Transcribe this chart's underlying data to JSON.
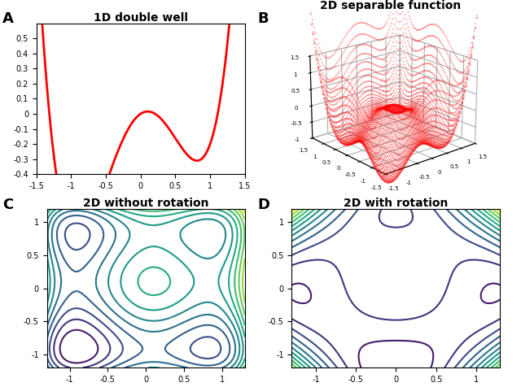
{
  "title_A": "1D double well",
  "title_B": "2D separable function",
  "title_C": "2D without rotation",
  "title_D": "2D with rotation",
  "label_A": "A",
  "label_B": "B",
  "label_C": "C",
  "label_D": "D",
  "line_color": "#FF0000",
  "surface_color": "#FF0000",
  "xlim_A": [
    -1.5,
    1.5
  ],
  "ylim_A": [
    -0.4,
    0.6
  ],
  "contour_levels": 14,
  "title_fontsize": 10,
  "label_fontsize": 13,
  "background": "#FFFFFF",
  "well_a": 1.0,
  "well_b": 0.3,
  "3d_elev": 20,
  "3d_azim": 230
}
